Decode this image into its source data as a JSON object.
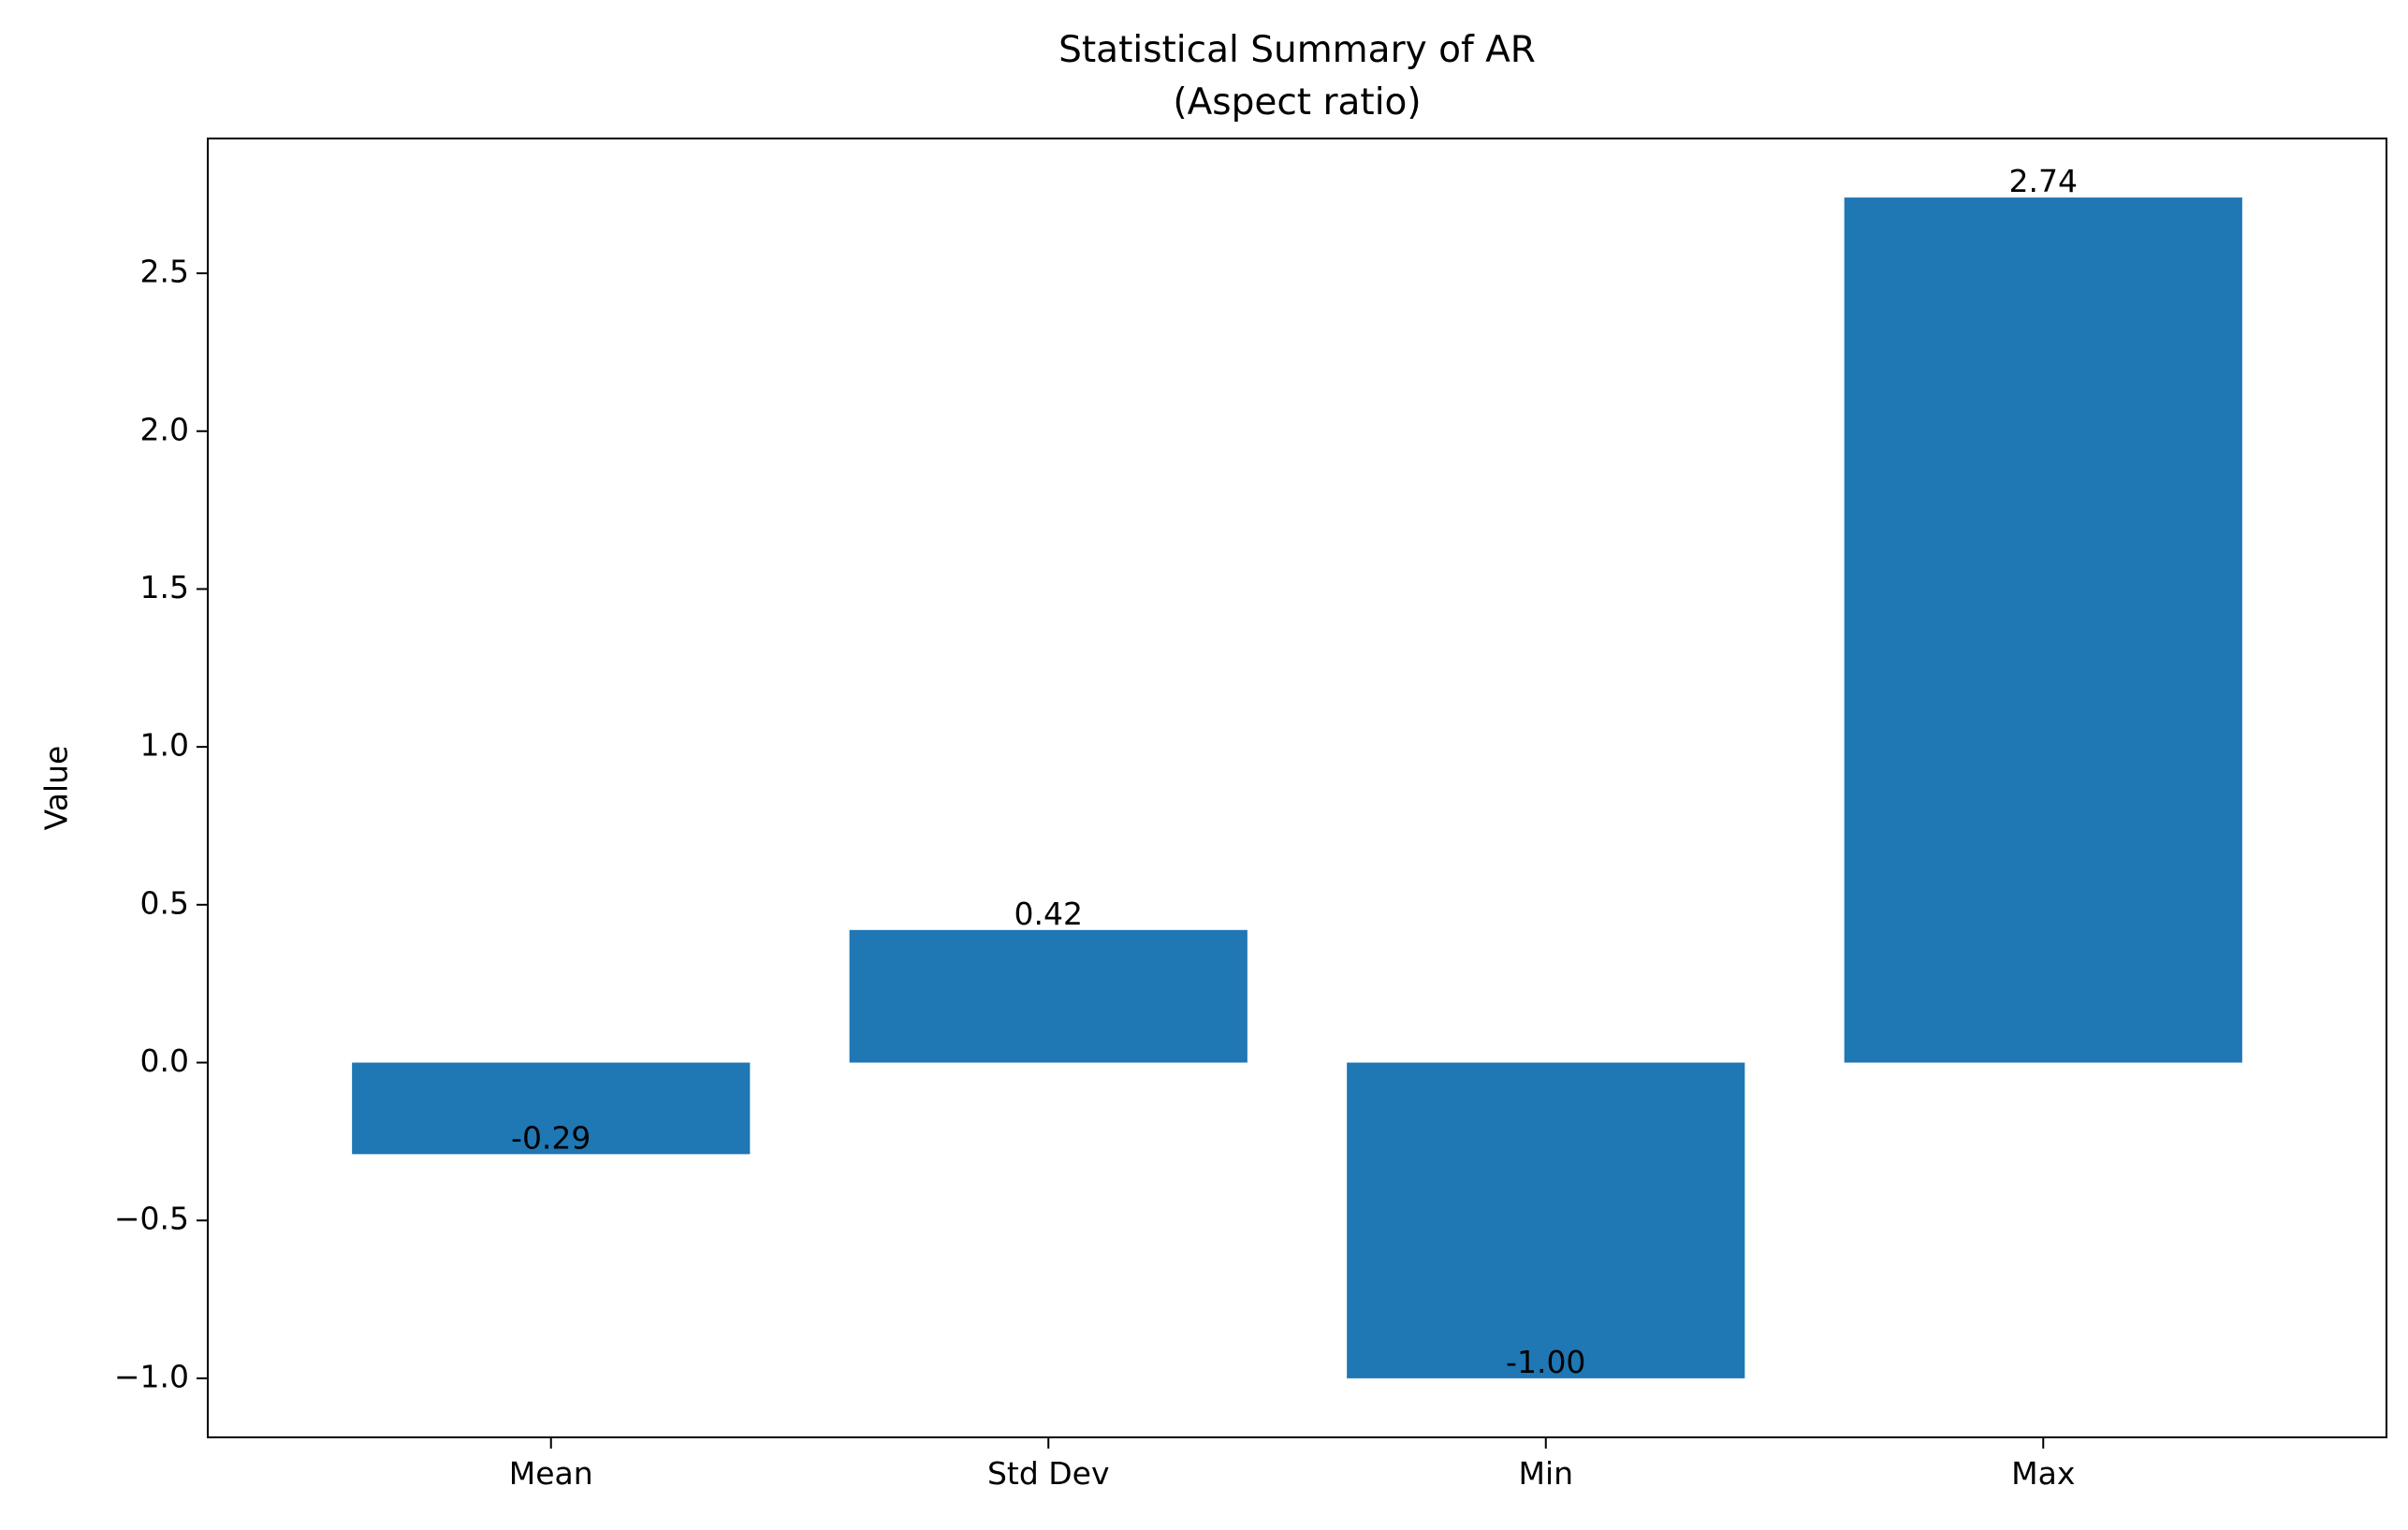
{
  "chart_data": {
    "type": "bar",
    "title_line1": "Statistical Summary of AR",
    "title_line2": "(Aspect ratio)",
    "xlabel": "",
    "ylabel": "Value",
    "categories": [
      "Mean",
      "Std Dev",
      "Min",
      "Max"
    ],
    "values": [
      -0.29,
      0.42,
      -1.0,
      2.74
    ],
    "value_labels": [
      "-0.29",
      "0.42",
      "-1.00",
      "2.74"
    ],
    "ylim": [
      -1.187,
      2.927
    ],
    "yticks": [
      -1.0,
      -0.5,
      0.0,
      0.5,
      1.0,
      1.5,
      2.0,
      2.5
    ],
    "ytick_labels": [
      "−1.0",
      "−0.5",
      "0.0",
      "0.5",
      "1.0",
      "1.5",
      "2.0",
      "2.5"
    ],
    "bar_color": "#1f77b4",
    "grid": false,
    "legend": "none"
  }
}
